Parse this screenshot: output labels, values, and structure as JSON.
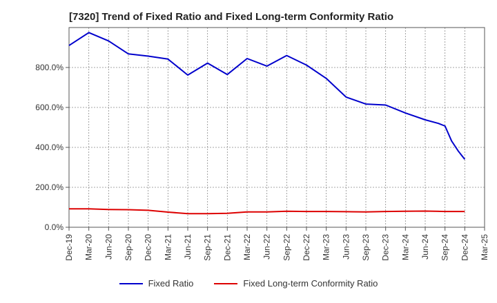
{
  "chart_data": {
    "type": "line",
    "title": "[7320]  Trend of Fixed Ratio and Fixed Long-term Conformity Ratio",
    "xlabel": "",
    "ylabel": "",
    "ylim": [
      0,
      1000
    ],
    "y_ticks": [
      "0.0%",
      "200.0%",
      "400.0%",
      "600.0%",
      "800.0%"
    ],
    "x_ticks": [
      "Dec-19",
      "Mar-20",
      "Jun-20",
      "Sep-20",
      "Dec-20",
      "Mar-21",
      "Jun-21",
      "Sep-21",
      "Dec-21",
      "Mar-22",
      "Jun-22",
      "Sep-22",
      "Dec-22",
      "Mar-23",
      "Jun-23",
      "Sep-23",
      "Dec-23",
      "Mar-24",
      "Jun-24",
      "Sep-24",
      "Dec-24",
      "Mar-25"
    ],
    "grid": true,
    "legend_position": "bottom",
    "series": [
      {
        "name": "Fixed Ratio",
        "color": "#0000cc",
        "points": [
          [
            "Dec-19",
            910
          ],
          [
            "Mar-20",
            975
          ],
          [
            "Jun-20",
            933
          ],
          [
            "Sep-20",
            868
          ],
          [
            "Dec-20",
            857
          ],
          [
            "Mar-21",
            842
          ],
          [
            "Jun-21",
            762
          ],
          [
            "Sep-21",
            822
          ],
          [
            "Dec-21",
            765
          ],
          [
            "Mar-22",
            845
          ],
          [
            "Jun-22",
            807
          ],
          [
            "Sep-22",
            860
          ],
          [
            "Dec-22",
            812
          ],
          [
            "Mar-23",
            745
          ],
          [
            "Jun-23",
            652
          ],
          [
            "Sep-23",
            617
          ],
          [
            "Dec-23",
            612
          ],
          [
            "Mar-24",
            572
          ],
          [
            "Jun-24",
            538
          ],
          [
            "Aug-24",
            520
          ],
          [
            "Sep-24",
            507
          ],
          [
            "Oct-24",
            432
          ],
          [
            "Nov-24",
            382
          ],
          [
            "Dec-24",
            340
          ]
        ]
      },
      {
        "name": "Fixed Long-term Conformity Ratio",
        "color": "#dd0000",
        "points": [
          [
            "Dec-19",
            92
          ],
          [
            "Mar-20",
            92
          ],
          [
            "Jun-20",
            89
          ],
          [
            "Sep-20",
            88
          ],
          [
            "Dec-20",
            85
          ],
          [
            "Mar-21",
            76
          ],
          [
            "Jun-21",
            68
          ],
          [
            "Sep-21",
            68
          ],
          [
            "Dec-21",
            70
          ],
          [
            "Mar-22",
            77
          ],
          [
            "Jun-22",
            77
          ],
          [
            "Sep-22",
            80
          ],
          [
            "Dec-22",
            79
          ],
          [
            "Mar-23",
            79
          ],
          [
            "Jun-23",
            78
          ],
          [
            "Sep-23",
            77
          ],
          [
            "Dec-23",
            79
          ],
          [
            "Mar-24",
            80
          ],
          [
            "Jun-24",
            81
          ],
          [
            "Sep-24",
            79
          ],
          [
            "Dec-24",
            79
          ]
        ]
      }
    ]
  }
}
